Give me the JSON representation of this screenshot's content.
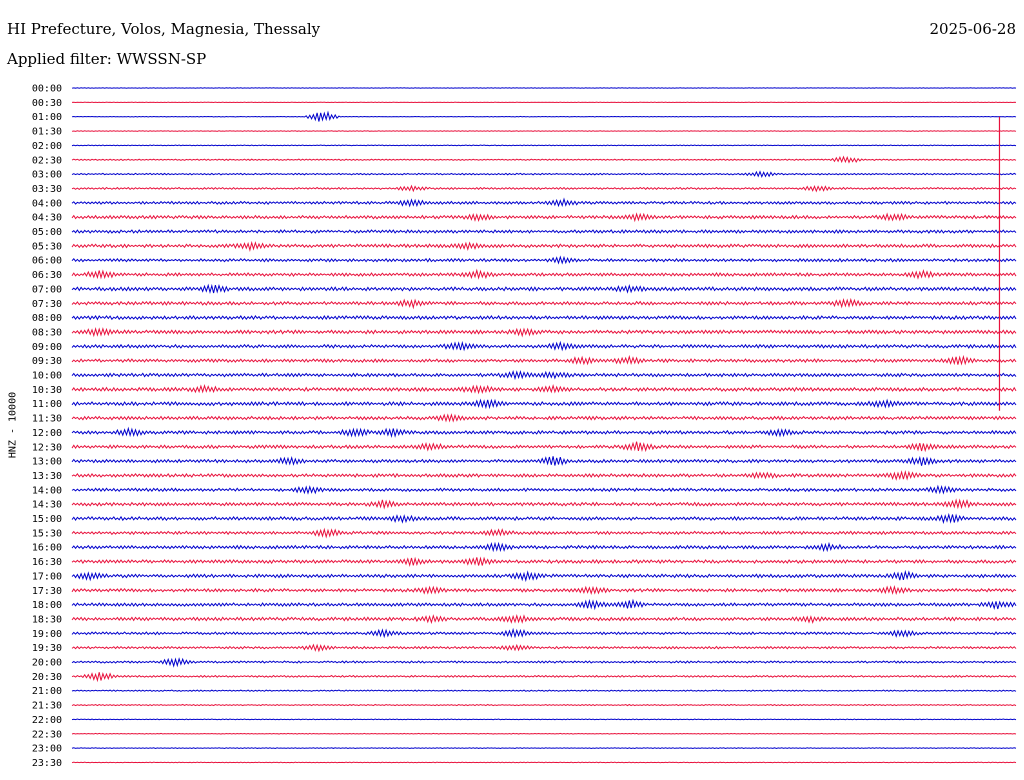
{
  "header": {
    "title": "HI Prefecture, Volos, Magnesia, Thessaly",
    "date": "2025-06-28",
    "filter": "Applied filter: WWSSN-SP"
  },
  "chart_data": {
    "type": "line",
    "title": "HI Prefecture, Volos, Magnesia, Thessaly",
    "subtitle": "Applied filter: WWSSN-SP",
    "ylabel": "HNZ - 10000",
    "xlabel": "",
    "colors": [
      "#0000cc",
      "#e8113c"
    ],
    "row_labels": [
      "00:00",
      "00:30",
      "01:00",
      "01:30",
      "02:00",
      "02:30",
      "03:00",
      "03:30",
      "04:00",
      "04:30",
      "05:00",
      "05:30",
      "06:00",
      "06:30",
      "07:00",
      "07:30",
      "08:00",
      "08:30",
      "09:00",
      "09:30",
      "10:00",
      "10:30",
      "11:00",
      "11:30",
      "12:00",
      "12:30",
      "13:00",
      "13:30",
      "14:00",
      "14:30",
      "15:00",
      "15:30",
      "16:00",
      "16:30",
      "17:00",
      "17:30",
      "18:00",
      "18:30",
      "19:00",
      "19:30",
      "20:00",
      "20:30",
      "21:00",
      "21:30",
      "22:00",
      "22:30",
      "23:00",
      "23:30"
    ],
    "noise": [
      0.4,
      0.3,
      0.4,
      0.5,
      0.6,
      1.0,
      1.2,
      1.5,
      2.2,
      2.5,
      2.4,
      2.6,
      2.4,
      2.5,
      2.8,
      2.6,
      2.7,
      2.8,
      2.6,
      2.5,
      2.6,
      2.8,
      2.8,
      2.6,
      2.6,
      2.5,
      2.5,
      2.6,
      2.4,
      2.6,
      2.7,
      2.4,
      2.5,
      2.6,
      2.6,
      2.5,
      2.5,
      2.6,
      2.0,
      1.8,
      1.6,
      1.4,
      1.0,
      0.9,
      0.6,
      0.5,
      0.6,
      0.5
    ],
    "events": [
      {
        "row": 2,
        "t": 0.265,
        "amp": 12
      },
      {
        "row": 5,
        "t": 0.82,
        "amp": 7
      },
      {
        "row": 6,
        "t": 0.73,
        "amp": 5
      },
      {
        "row": 7,
        "t": 0.36,
        "amp": 4
      },
      {
        "row": 7,
        "t": 0.79,
        "amp": 5
      },
      {
        "row": 8,
        "t": 0.36,
        "amp": 6
      },
      {
        "row": 8,
        "t": 0.52,
        "amp": 5
      },
      {
        "row": 9,
        "t": 0.43,
        "amp": 5
      },
      {
        "row": 9,
        "t": 0.6,
        "amp": 6
      },
      {
        "row": 9,
        "t": 0.87,
        "amp": 6
      },
      {
        "row": 11,
        "t": 0.19,
        "amp": 6
      },
      {
        "row": 11,
        "t": 0.42,
        "amp": 5
      },
      {
        "row": 12,
        "t": 0.52,
        "amp": 5
      },
      {
        "row": 13,
        "t": 0.03,
        "amp": 6
      },
      {
        "row": 13,
        "t": 0.43,
        "amp": 6
      },
      {
        "row": 13,
        "t": 0.9,
        "amp": 6
      },
      {
        "row": 14,
        "t": 0.15,
        "amp": 6
      },
      {
        "row": 14,
        "t": 0.59,
        "amp": 5
      },
      {
        "row": 15,
        "t": 0.36,
        "amp": 6
      },
      {
        "row": 15,
        "t": 0.82,
        "amp": 7
      },
      {
        "row": 17,
        "t": 0.03,
        "amp": 6
      },
      {
        "row": 17,
        "t": 0.48,
        "amp": 5
      },
      {
        "row": 18,
        "t": 0.41,
        "amp": 7
      },
      {
        "row": 18,
        "t": 0.52,
        "amp": 6
      },
      {
        "row": 19,
        "t": 0.54,
        "amp": 6
      },
      {
        "row": 19,
        "t": 0.59,
        "amp": 6
      },
      {
        "row": 19,
        "t": 0.94,
        "amp": 7
      },
      {
        "row": 20,
        "t": 0.47,
        "amp": 6
      },
      {
        "row": 20,
        "t": 0.51,
        "amp": 5
      },
      {
        "row": 21,
        "t": 0.14,
        "amp": 5
      },
      {
        "row": 21,
        "t": 0.43,
        "amp": 6
      },
      {
        "row": 21,
        "t": 0.51,
        "amp": 5
      },
      {
        "row": 22,
        "t": 0.44,
        "amp": 7
      },
      {
        "row": 22,
        "t": 0.86,
        "amp": 6
      },
      {
        "row": 23,
        "t": 0.4,
        "amp": 5
      },
      {
        "row": 24,
        "t": 0.06,
        "amp": 6
      },
      {
        "row": 24,
        "t": 0.3,
        "amp": 6
      },
      {
        "row": 24,
        "t": 0.34,
        "amp": 7
      },
      {
        "row": 24,
        "t": 0.75,
        "amp": 5
      },
      {
        "row": 25,
        "t": 0.38,
        "amp": 5
      },
      {
        "row": 25,
        "t": 0.6,
        "amp": 9
      },
      {
        "row": 25,
        "t": 0.9,
        "amp": 7
      },
      {
        "row": 26,
        "t": 0.23,
        "amp": 6
      },
      {
        "row": 26,
        "t": 0.51,
        "amp": 8
      },
      {
        "row": 26,
        "t": 0.9,
        "amp": 7
      },
      {
        "row": 27,
        "t": 0.73,
        "amp": 5
      },
      {
        "row": 27,
        "t": 0.88,
        "amp": 7
      },
      {
        "row": 28,
        "t": 0.25,
        "amp": 6
      },
      {
        "row": 28,
        "t": 0.92,
        "amp": 7
      },
      {
        "row": 29,
        "t": 0.33,
        "amp": 6
      },
      {
        "row": 29,
        "t": 0.94,
        "amp": 7
      },
      {
        "row": 30,
        "t": 0.35,
        "amp": 5
      },
      {
        "row": 30,
        "t": 0.93,
        "amp": 7
      },
      {
        "row": 31,
        "t": 0.27,
        "amp": 6
      },
      {
        "row": 31,
        "t": 0.45,
        "amp": 5
      },
      {
        "row": 32,
        "t": 0.45,
        "amp": 6
      },
      {
        "row": 32,
        "t": 0.8,
        "amp": 5
      },
      {
        "row": 33,
        "t": 0.36,
        "amp": 6
      },
      {
        "row": 33,
        "t": 0.43,
        "amp": 7
      },
      {
        "row": 34,
        "t": 0.02,
        "amp": 6
      },
      {
        "row": 34,
        "t": 0.48,
        "amp": 7
      },
      {
        "row": 34,
        "t": 0.88,
        "amp": 7
      },
      {
        "row": 35,
        "t": 0.38,
        "amp": 5
      },
      {
        "row": 35,
        "t": 0.55,
        "amp": 6
      },
      {
        "row": 35,
        "t": 0.87,
        "amp": 6
      },
      {
        "row": 36,
        "t": 0.55,
        "amp": 7
      },
      {
        "row": 36,
        "t": 0.59,
        "amp": 7
      },
      {
        "row": 36,
        "t": 0.98,
        "amp": 7
      },
      {
        "row": 37,
        "t": 0.38,
        "amp": 5
      },
      {
        "row": 37,
        "t": 0.47,
        "amp": 6
      },
      {
        "row": 37,
        "t": 0.78,
        "amp": 5
      },
      {
        "row": 38,
        "t": 0.33,
        "amp": 6
      },
      {
        "row": 38,
        "t": 0.47,
        "amp": 7
      },
      {
        "row": 38,
        "t": 0.88,
        "amp": 6
      },
      {
        "row": 39,
        "t": 0.26,
        "amp": 6
      },
      {
        "row": 39,
        "t": 0.47,
        "amp": 5
      },
      {
        "row": 40,
        "t": 0.11,
        "amp": 7
      },
      {
        "row": 41,
        "t": 0.03,
        "amp": 8
      }
    ],
    "marker": {
      "t": 0.9825,
      "from_row": 2,
      "to_row": 22
    }
  }
}
